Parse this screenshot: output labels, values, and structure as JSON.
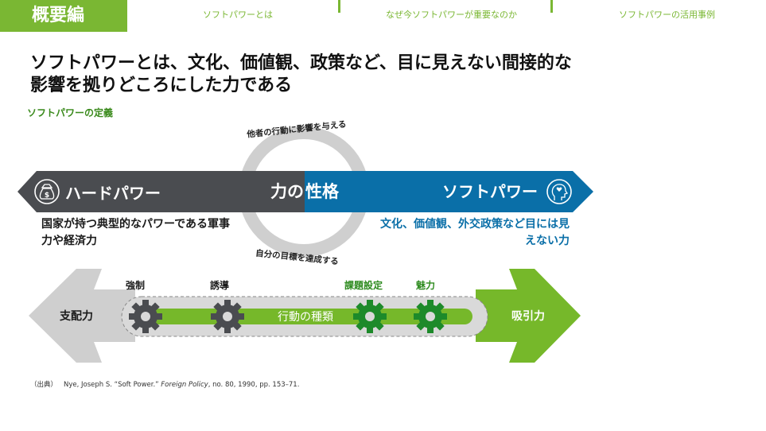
{
  "header": {
    "section_tag": "概要編",
    "tabs": [
      {
        "label": "ソフトパワーとは"
      },
      {
        "label": "なぜ今ソフトパワーが重要なのか"
      },
      {
        "label": "ソフトパワーの活用事例"
      }
    ]
  },
  "headline": {
    "line1": "ソフトパワーとは、文化、価値観、政策など、目に見えない間接的な",
    "line2": "影響を拠りどころにした力である"
  },
  "subtitle": "ソフトパワーの定義",
  "diagram": {
    "ring_top": "他者の行動に影響を与える",
    "ring_bottom": "自分の目標を達成する",
    "center_label_left": "力の",
    "center_label_right": "性格",
    "hard_power": {
      "label": "ハードパワー",
      "description": "国家が持つ典型的なパワーである軍事力や経済力",
      "icon": "money-bag-icon",
      "color": "#4a4c50"
    },
    "soft_power": {
      "label": "ソフトパワー",
      "description": "文化、価値観、外交政策など目には見えない力",
      "icon": "head-heart-icon",
      "color": "#0a6fa8"
    },
    "spectrum": {
      "left_label": "支配力",
      "right_label": "吸引力",
      "bar_label": "行動の種類",
      "hard_items": [
        "強制",
        "誘導"
      ],
      "soft_items": [
        "課題設定",
        "魅力"
      ],
      "colors": {
        "gray": "#cfcfcf",
        "green": "#76b82a",
        "dark_gear": "#4a4c50",
        "green_gear": "#1d8a2a"
      }
    }
  },
  "source": {
    "label": "（出典）",
    "author": "Nye, Joseph S. “Soft Power.”",
    "journal": "Foreign Policy",
    "details": ", no. 80, 1990, pp. 153–71."
  }
}
